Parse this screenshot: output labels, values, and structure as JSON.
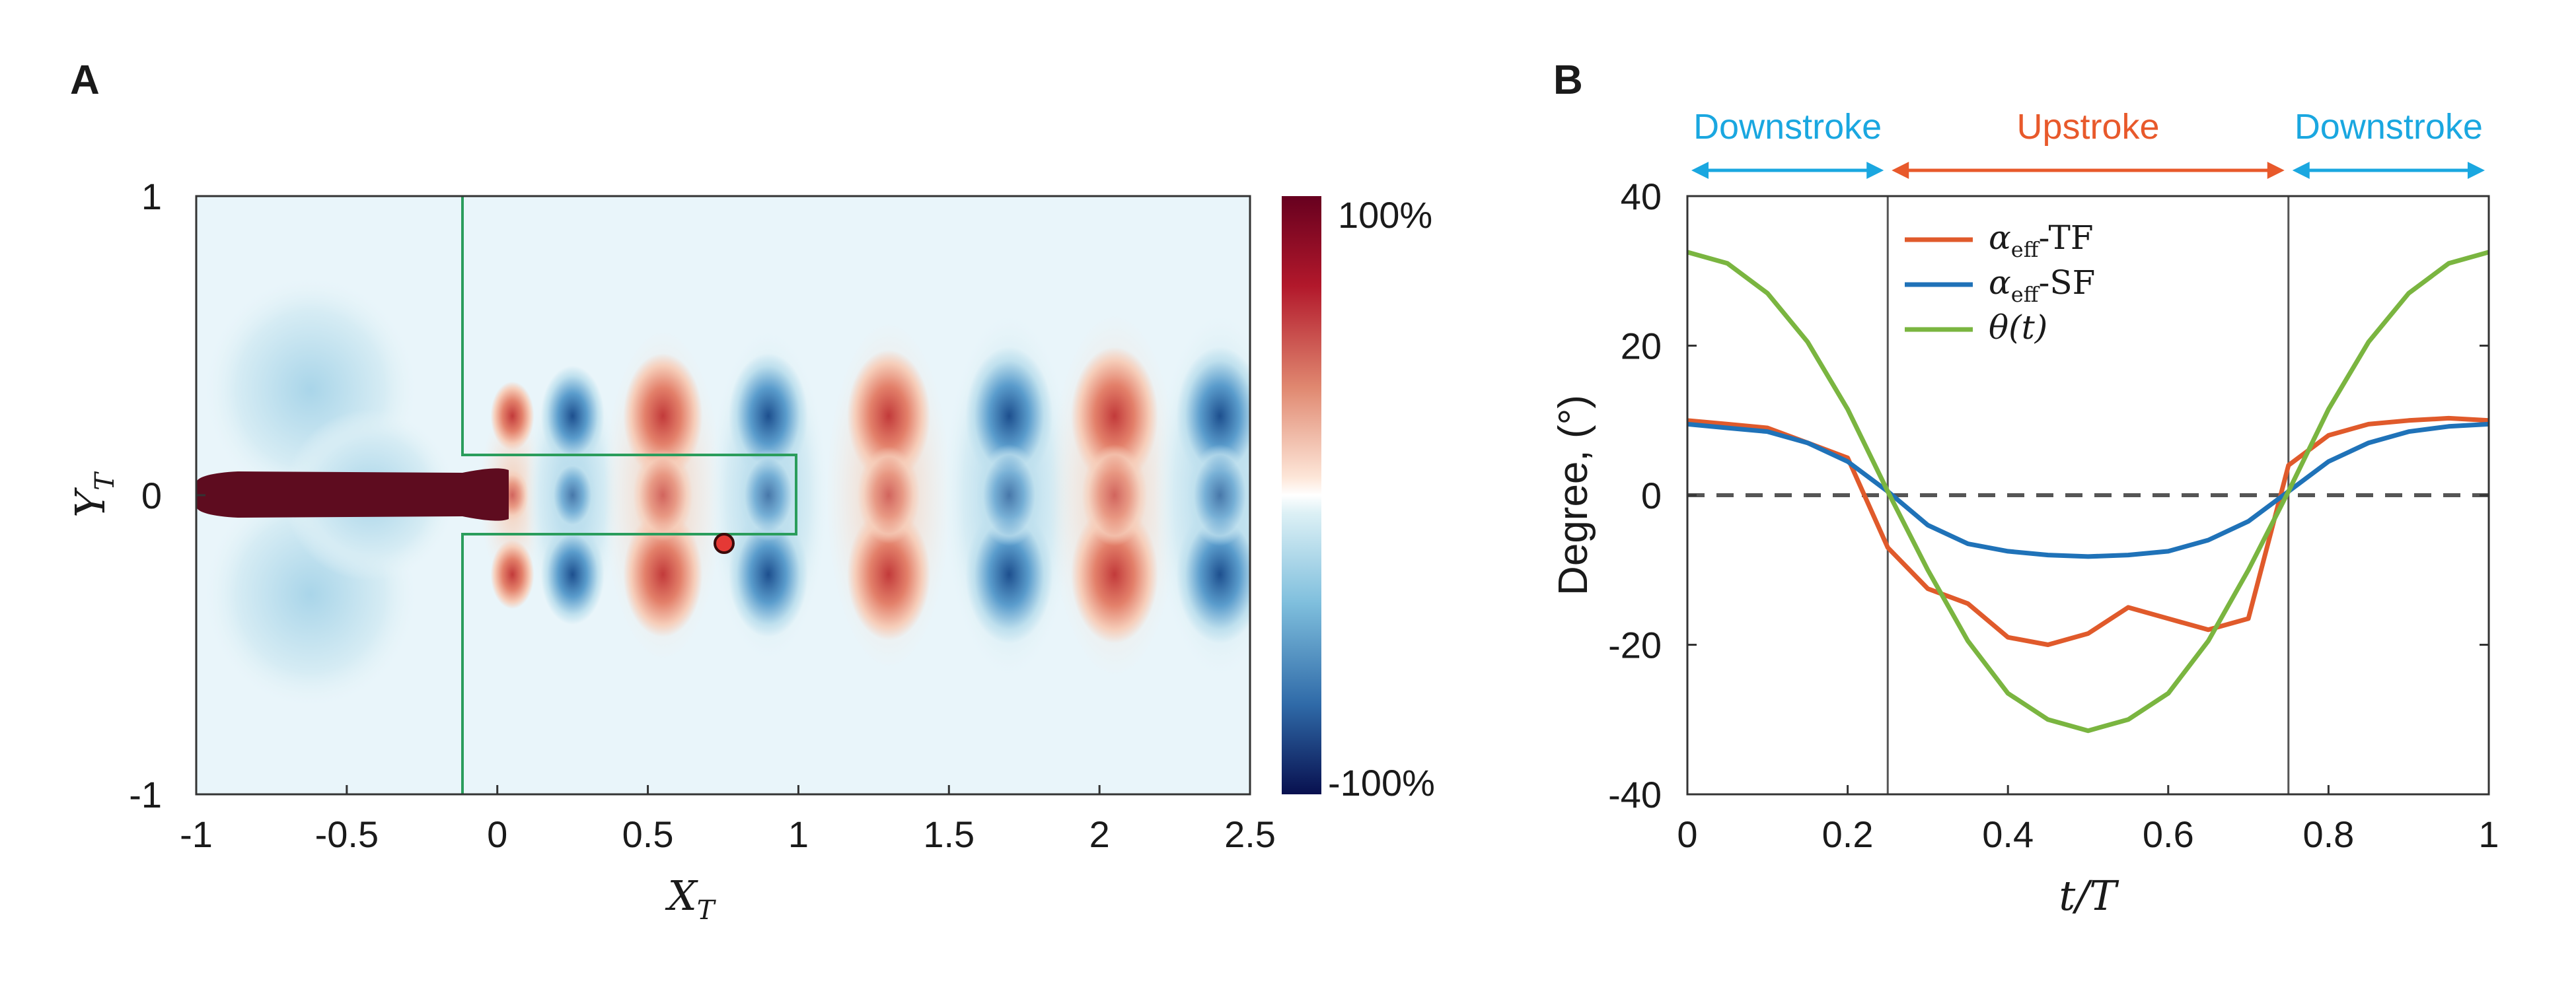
{
  "panel_a": {
    "label": "A",
    "xlabel_main": "X",
    "xlabel_sub": "T",
    "ylabel_main": "Y",
    "ylabel_sub": "T",
    "colorbar": {
      "max_label": "100%",
      "min_label": "-100%"
    },
    "colors": {
      "wake_red": "#b2182b",
      "wake_blue": "#2166ac",
      "body": "#5e0c1f",
      "domain_box": "#2a9d5c",
      "probe": "#e53935"
    },
    "chart_data": {
      "type": "heatmap",
      "xlim": [
        -1,
        2.5
      ],
      "ylim": [
        -1,
        1
      ],
      "xticks": [
        "-1",
        "-0.5",
        "0",
        "0.5",
        "1",
        "1.5",
        "2",
        "2.5"
      ],
      "yticks": [
        "1",
        "0",
        "-1"
      ],
      "colorbar_range_percent": [
        -100,
        100
      ],
      "probe_point": {
        "x": 0.75,
        "y": -0.16
      },
      "subdomain_x": [
        -0.1,
        1.0
      ],
      "subdomain_y": [
        -0.13,
        0.13
      ]
    }
  },
  "panel_b": {
    "label": "B",
    "phases": [
      {
        "name": "Downstroke",
        "start": 0.0,
        "end": 0.25,
        "color": "#1aa7e0"
      },
      {
        "name": "Upstroke",
        "start": 0.25,
        "end": 0.75,
        "color": "#e8592b"
      },
      {
        "name": "Downstroke",
        "start": 0.75,
        "end": 1.0,
        "color": "#1aa7e0"
      }
    ],
    "ylabel": "Degree, (°)",
    "xlabel": "t/T",
    "legend": [
      {
        "main": "α",
        "sub": "eff",
        "suffix": "-TF",
        "color": "#e05a2b"
      },
      {
        "main": "α",
        "sub": "eff",
        "suffix": "-SF",
        "color": "#1f72b8"
      },
      {
        "main": "θ",
        "sub": "",
        "suffix": "(t)",
        "color": "#7ab540"
      }
    ],
    "chart_data": {
      "type": "line",
      "xlim": [
        0,
        1
      ],
      "ylim": [
        -40,
        40
      ],
      "xticks": [
        "0",
        "0.2",
        "0.4",
        "0.6",
        "0.8",
        "1"
      ],
      "yticks": [
        "40",
        "20",
        "0",
        "-20",
        "-40"
      ],
      "vlines": [
        0.25,
        0.75
      ],
      "hline_dashed": 0,
      "series": [
        {
          "name": "α_eff-TF",
          "x": [
            0,
            0.05,
            0.1,
            0.15,
            0.2,
            0.25,
            0.3,
            0.35,
            0.4,
            0.45,
            0.5,
            0.55,
            0.6,
            0.65,
            0.7,
            0.75,
            0.8,
            0.85,
            0.9,
            0.95,
            1.0
          ],
          "values": [
            10,
            9.5,
            9,
            7,
            5,
            -7,
            -12.5,
            -14.5,
            -19,
            -20,
            -18.5,
            -15,
            -16.5,
            -18,
            -16.5,
            4,
            8,
            9.5,
            10,
            10.3,
            10
          ]
        },
        {
          "name": "α_eff-SF",
          "x": [
            0,
            0.05,
            0.1,
            0.15,
            0.2,
            0.25,
            0.3,
            0.35,
            0.4,
            0.45,
            0.5,
            0.55,
            0.6,
            0.65,
            0.7,
            0.75,
            0.8,
            0.85,
            0.9,
            0.95,
            1.0
          ],
          "values": [
            9.5,
            9,
            8.5,
            7,
            4.5,
            0.5,
            -4,
            -6.5,
            -7.5,
            -8,
            -8.2,
            -8,
            -7.5,
            -6,
            -3.5,
            0.5,
            4.5,
            7,
            8.5,
            9.2,
            9.5
          ]
        },
        {
          "name": "θ(t)",
          "x": [
            0,
            0.05,
            0.1,
            0.15,
            0.2,
            0.25,
            0.3,
            0.35,
            0.4,
            0.45,
            0.5,
            0.55,
            0.6,
            0.65,
            0.7,
            0.75,
            0.8,
            0.85,
            0.9,
            0.95,
            1.0
          ],
          "values": [
            32.5,
            31,
            27,
            20.5,
            11.5,
            0.5,
            -10,
            -19.5,
            -26.5,
            -30,
            -31.5,
            -30,
            -26.5,
            -19.5,
            -10,
            0.5,
            11.5,
            20.5,
            27,
            31,
            32.5
          ]
        }
      ]
    }
  }
}
